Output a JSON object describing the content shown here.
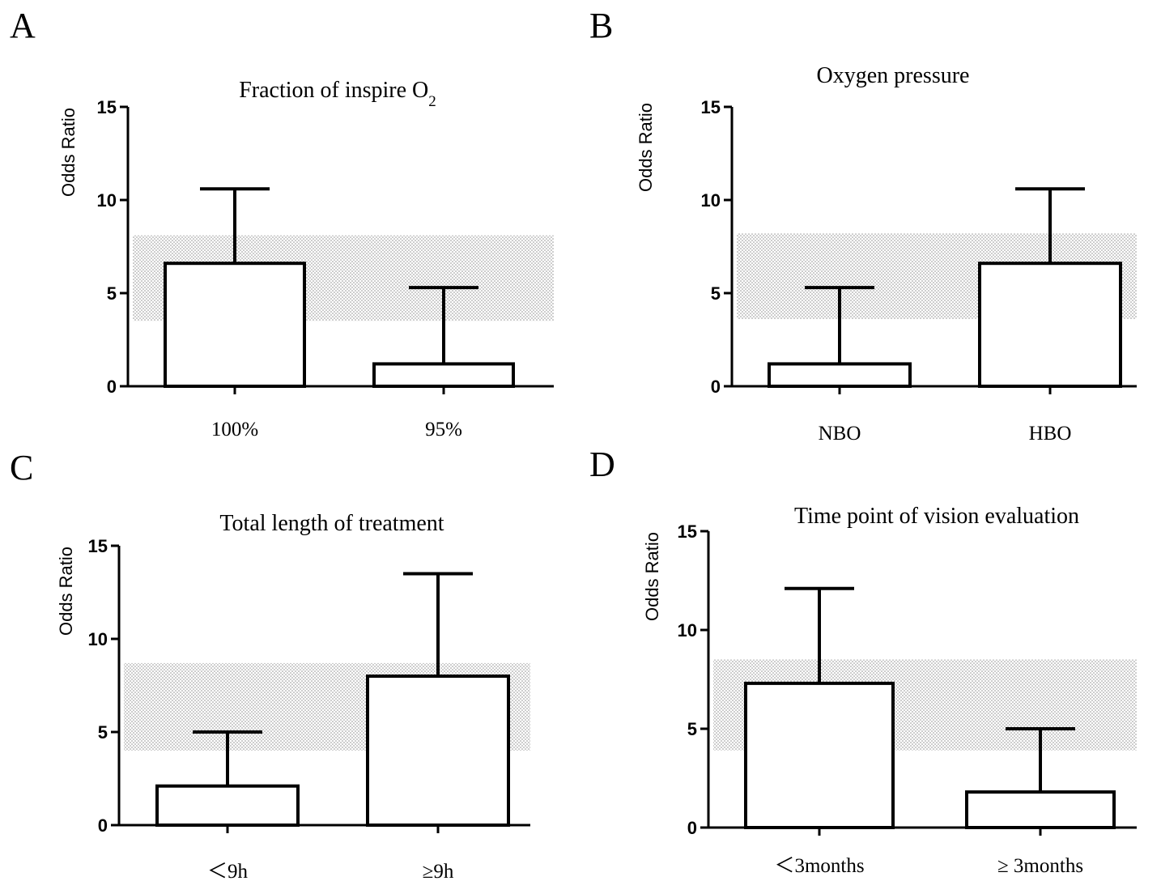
{
  "chart_data": [
    {
      "type": "bar",
      "panel": "A",
      "title": "Fraction of inspire O",
      "title_subscript": "2",
      "ylabel": "Odds  Ratio",
      "xlabel": "",
      "ylim": [
        0,
        15
      ],
      "yticks": [
        0,
        5,
        10,
        15
      ],
      "categories": [
        "100%",
        "95%"
      ],
      "values": [
        6.6,
        1.2
      ],
      "error_upper": [
        10.6,
        5.3
      ],
      "band": [
        3.5,
        8.1
      ],
      "grid": false
    },
    {
      "type": "bar",
      "panel": "B",
      "title": "Oxygen pressure",
      "title_subscript": "",
      "ylabel": "Odds  Ratio",
      "xlabel": "",
      "ylim": [
        0,
        15
      ],
      "yticks": [
        0,
        5,
        10,
        15
      ],
      "categories": [
        "NBO",
        "HBO"
      ],
      "values": [
        1.2,
        6.6
      ],
      "error_upper": [
        5.3,
        10.6
      ],
      "band": [
        3.6,
        8.2
      ],
      "grid": false
    },
    {
      "type": "bar",
      "panel": "C",
      "title": "Total length  of treatment",
      "title_subscript": "",
      "ylabel": "Odds  Ratio",
      "xlabel": "",
      "ylim": [
        0,
        15
      ],
      "yticks": [
        0,
        5,
        10,
        15
      ],
      "categories": [
        "＜9h",
        "≥9h"
      ],
      "values": [
        2.1,
        8.0
      ],
      "error_upper": [
        5.0,
        13.5
      ],
      "band": [
        4.0,
        8.7
      ],
      "grid": false
    },
    {
      "type": "bar",
      "panel": "D",
      "title": "Time point of vision evaluation",
      "title_subscript": "",
      "ylabel": "Odds  Ratio",
      "xlabel": "",
      "ylim": [
        0,
        15
      ],
      "yticks": [
        0,
        5,
        10,
        15
      ],
      "categories": [
        "＜3months",
        "≥ 3months"
      ],
      "values": [
        7.3,
        1.8
      ],
      "error_upper": [
        12.1,
        5.0
      ],
      "band": [
        3.9,
        8.5
      ],
      "grid": false
    }
  ]
}
